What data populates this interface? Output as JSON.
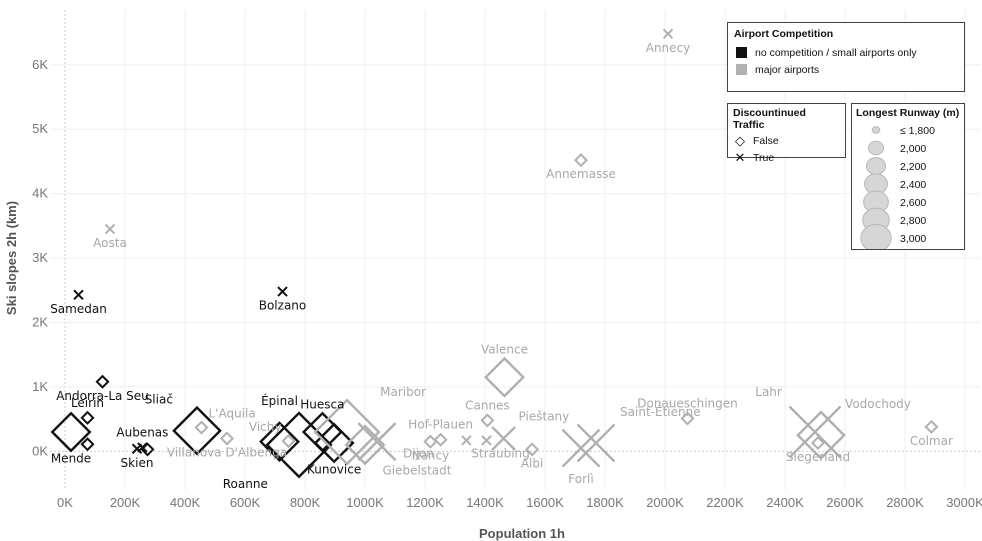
{
  "chart_data": {
    "type": "scatter",
    "xlabel": "Population 1h",
    "ylabel": "Ski slopes 2h (km)",
    "xlim": [
      -50000,
      3050000
    ],
    "ylim": [
      -600,
      6850
    ],
    "x_ticks": [
      {
        "v": 0,
        "label": "0K"
      },
      {
        "v": 200000,
        "label": "200K"
      },
      {
        "v": 400000,
        "label": "400K"
      },
      {
        "v": 600000,
        "label": "600K"
      },
      {
        "v": 800000,
        "label": "800K"
      },
      {
        "v": 1000000,
        "label": "1000K"
      },
      {
        "v": 1200000,
        "label": "1200K"
      },
      {
        "v": 1400000,
        "label": "1400K"
      },
      {
        "v": 1600000,
        "label": "1600K"
      },
      {
        "v": 1800000,
        "label": "1800K"
      },
      {
        "v": 2000000,
        "label": "2000K"
      },
      {
        "v": 2200000,
        "label": "2200K"
      },
      {
        "v": 2400000,
        "label": "2400K"
      },
      {
        "v": 2600000,
        "label": "2600K"
      },
      {
        "v": 2800000,
        "label": "2800K"
      },
      {
        "v": 3000000,
        "label": "3000K"
      }
    ],
    "y_ticks": [
      {
        "v": 0,
        "label": "0K"
      },
      {
        "v": 1000,
        "label": "1K"
      },
      {
        "v": 2000,
        "label": "2K"
      },
      {
        "v": 3000,
        "label": "3K"
      },
      {
        "v": 4000,
        "label": "4K"
      },
      {
        "v": 5000,
        "label": "5K"
      },
      {
        "v": 6000,
        "label": "6K"
      }
    ],
    "grid": true,
    "colors": {
      "no_competition": "#111111",
      "major": "#b0b0b0"
    },
    "points": [
      {
        "name": "Annecy",
        "x": 2010000,
        "y": 6480,
        "competition": "major",
        "discontinued": true,
        "runway": 1800,
        "label_pos": "below"
      },
      {
        "name": "Annemasse",
        "x": 1720000,
        "y": 4520,
        "competition": "major",
        "discontinued": false,
        "runway": 1800,
        "label_pos": "below"
      },
      {
        "name": "Aosta",
        "x": 150000,
        "y": 3450,
        "competition": "major",
        "discontinued": true,
        "runway": 1800,
        "label_pos": "below"
      },
      {
        "name": "Samedan",
        "x": 45000,
        "y": 2430,
        "competition": "no_competition",
        "discontinued": true,
        "runway": 1800,
        "label_pos": "below"
      },
      {
        "name": "Bolzano",
        "x": 725000,
        "y": 2480,
        "competition": "no_competition",
        "discontinued": true,
        "runway": 1800,
        "label_pos": "below"
      },
      {
        "name": "Andorra-La Seu",
        "x": 125000,
        "y": 1080,
        "competition": "no_competition",
        "discontinued": false,
        "runway": 1800,
        "label_pos": "below"
      },
      {
        "name": "Leirin",
        "x": 75000,
        "y": 520,
        "competition": "no_competition",
        "discontinued": false,
        "runway": 1800,
        "label_pos": "above"
      },
      {
        "name": "Valence",
        "x": 1465000,
        "y": 1150,
        "competition": "major",
        "discontinued": false,
        "runway": 2400,
        "label_pos": "above"
      },
      {
        "name": "Mende",
        "x": 20000,
        "y": 300,
        "competition": "no_competition",
        "discontinued": false,
        "runway": 2400,
        "label_pos": "below"
      },
      {
        "name": "Mende-small",
        "x": 75000,
        "y": 110,
        "competition": "no_competition",
        "discontinued": false,
        "runway": 1800,
        "label_pos": "none"
      },
      {
        "name": "Aubenas",
        "x": 258000,
        "y": 60,
        "competition": "no_competition",
        "discontinued": true,
        "runway": 1800,
        "label_pos": "above"
      },
      {
        "name": "Skien",
        "x": 240000,
        "y": 40,
        "competition": "no_competition",
        "discontinued": true,
        "runway": 1800,
        "label_pos": "below"
      },
      {
        "name": "Skien-2",
        "x": 275000,
        "y": 30,
        "competition": "no_competition",
        "discontinued": false,
        "runway": 1800,
        "label_pos": "none"
      },
      {
        "name": "Sliač",
        "x": 440000,
        "y": 320,
        "competition": "no_competition",
        "discontinued": false,
        "runway": 2600,
        "label_pos": "above-left"
      },
      {
        "name": "L'Aquila",
        "x": 455000,
        "y": 370,
        "competition": "major",
        "discontinued": false,
        "runway": 1800,
        "label_pos": "above-right"
      },
      {
        "name": "Villanova D'Albenga",
        "x": 540000,
        "y": 200,
        "competition": "major",
        "discontinued": false,
        "runway": 1800,
        "label_pos": "below"
      },
      {
        "name": "Épinal",
        "x": 715000,
        "y": 150,
        "competition": "no_competition",
        "discontinued": false,
        "runway": 2400,
        "label_pos": "above-top"
      },
      {
        "name": "Vichy",
        "x": 745000,
        "y": 160,
        "competition": "major",
        "discontinued": false,
        "runway": 1800,
        "label_pos": "above-left"
      },
      {
        "name": "Roanne",
        "x": 780000,
        "y": 100,
        "competition": "no_competition",
        "discontinued": false,
        "runway": 3000,
        "label_pos": "below-left"
      },
      {
        "name": "Huesca",
        "x": 858000,
        "y": 300,
        "competition": "no_competition",
        "discontinued": false,
        "runway": 2400,
        "label_pos": "above"
      },
      {
        "name": "Kunovice",
        "x": 897000,
        "y": 130,
        "competition": "no_competition",
        "discontinued": false,
        "runway": 2400,
        "label_pos": "below"
      },
      {
        "name": "Maribor",
        "x": 940000,
        "y": 300,
        "competition": "major",
        "discontinued": false,
        "runway": 3000,
        "label_pos": "above-right"
      },
      {
        "name": "Giebelstadt",
        "x": 1000000,
        "y": 100,
        "competition": "major",
        "discontinued": false,
        "runway": 2400,
        "label_pos": "below-right"
      },
      {
        "name": "Dijon-x",
        "x": 1040000,
        "y": 150,
        "competition": "major",
        "discontinued": true,
        "runway": 2600,
        "label_pos": "none"
      },
      {
        "name": "Dijon",
        "x": 1040000,
        "y": 150,
        "competition": "major",
        "discontinued": true,
        "runway": 2600,
        "label_pos": "right"
      },
      {
        "name": "Hof-Plauen",
        "x": 1252000,
        "y": 180,
        "competition": "major",
        "discontinued": false,
        "runway": 1800,
        "label_pos": "above"
      },
      {
        "name": "Nancy",
        "x": 1218000,
        "y": 150,
        "competition": "major",
        "discontinued": false,
        "runway": 1800,
        "label_pos": "below"
      },
      {
        "name": "Straubing",
        "x": 1338000,
        "y": 170,
        "competition": "major",
        "discontinued": true,
        "runway": 1800,
        "label_pos": "below-right"
      },
      {
        "name": "Cannes",
        "x": 1408000,
        "y": 480,
        "competition": "major",
        "discontinued": false,
        "runway": 1800,
        "label_pos": "above"
      },
      {
        "name": "Cannes-x",
        "x": 1405000,
        "y": 170,
        "competition": "major",
        "discontinued": true,
        "runway": 1800,
        "label_pos": "none"
      },
      {
        "name": "Pieštany",
        "x": 1462000,
        "y": 200,
        "competition": "major",
        "discontinued": true,
        "runway": 2200,
        "label_pos": "above-right"
      },
      {
        "name": "Albi",
        "x": 1557000,
        "y": 30,
        "competition": "major",
        "discontinued": false,
        "runway": 1800,
        "label_pos": "below"
      },
      {
        "name": "Forlì",
        "x": 1720000,
        "y": 50,
        "competition": "major",
        "discontinued": true,
        "runway": 2600,
        "label_pos": "below"
      },
      {
        "name": "Saint-Étienne",
        "x": 1770000,
        "y": 130,
        "competition": "major",
        "discontinued": true,
        "runway": 2600,
        "label_pos": "above-right"
      },
      {
        "name": "Donaueschingen",
        "x": 2075000,
        "y": 510,
        "competition": "major",
        "discontinued": false,
        "runway": 1800,
        "label_pos": "above"
      },
      {
        "name": "Lahr",
        "x": 2500000,
        "y": 300,
        "competition": "major",
        "discontinued": true,
        "runway": 3000,
        "label_pos": "above-left"
      },
      {
        "name": "Siegerland",
        "x": 2510000,
        "y": 130,
        "competition": "major",
        "discontinued": false,
        "runway": 1800,
        "label_pos": "below"
      },
      {
        "name": "Vodochody",
        "x": 2520000,
        "y": 250,
        "competition": "major",
        "discontinued": false,
        "runway": 2600,
        "label_pos": "above-right"
      },
      {
        "name": "Colmar",
        "x": 2888000,
        "y": 380,
        "competition": "major",
        "discontinued": false,
        "runway": 1800,
        "label_pos": "below"
      }
    ]
  },
  "legend_competition": {
    "title": "Airport Competition",
    "items": [
      {
        "label": "no competition / small airports only",
        "color": "#111111"
      },
      {
        "label": "major airports",
        "color": "#b0b0b0"
      }
    ]
  },
  "legend_traffic": {
    "title": "Discountinued Traffic",
    "items": [
      {
        "label": "False",
        "symbol": "◇"
      },
      {
        "label": "True",
        "symbol": "✕"
      }
    ]
  },
  "legend_runway": {
    "title": "Longest Runway (m)",
    "items": [
      {
        "label": "≤ 1,800"
      },
      {
        "label": "2,000"
      },
      {
        "label": "2,200"
      },
      {
        "label": "2,400"
      },
      {
        "label": "2,600"
      },
      {
        "label": "2,800"
      },
      {
        "label": "3,000"
      }
    ]
  }
}
